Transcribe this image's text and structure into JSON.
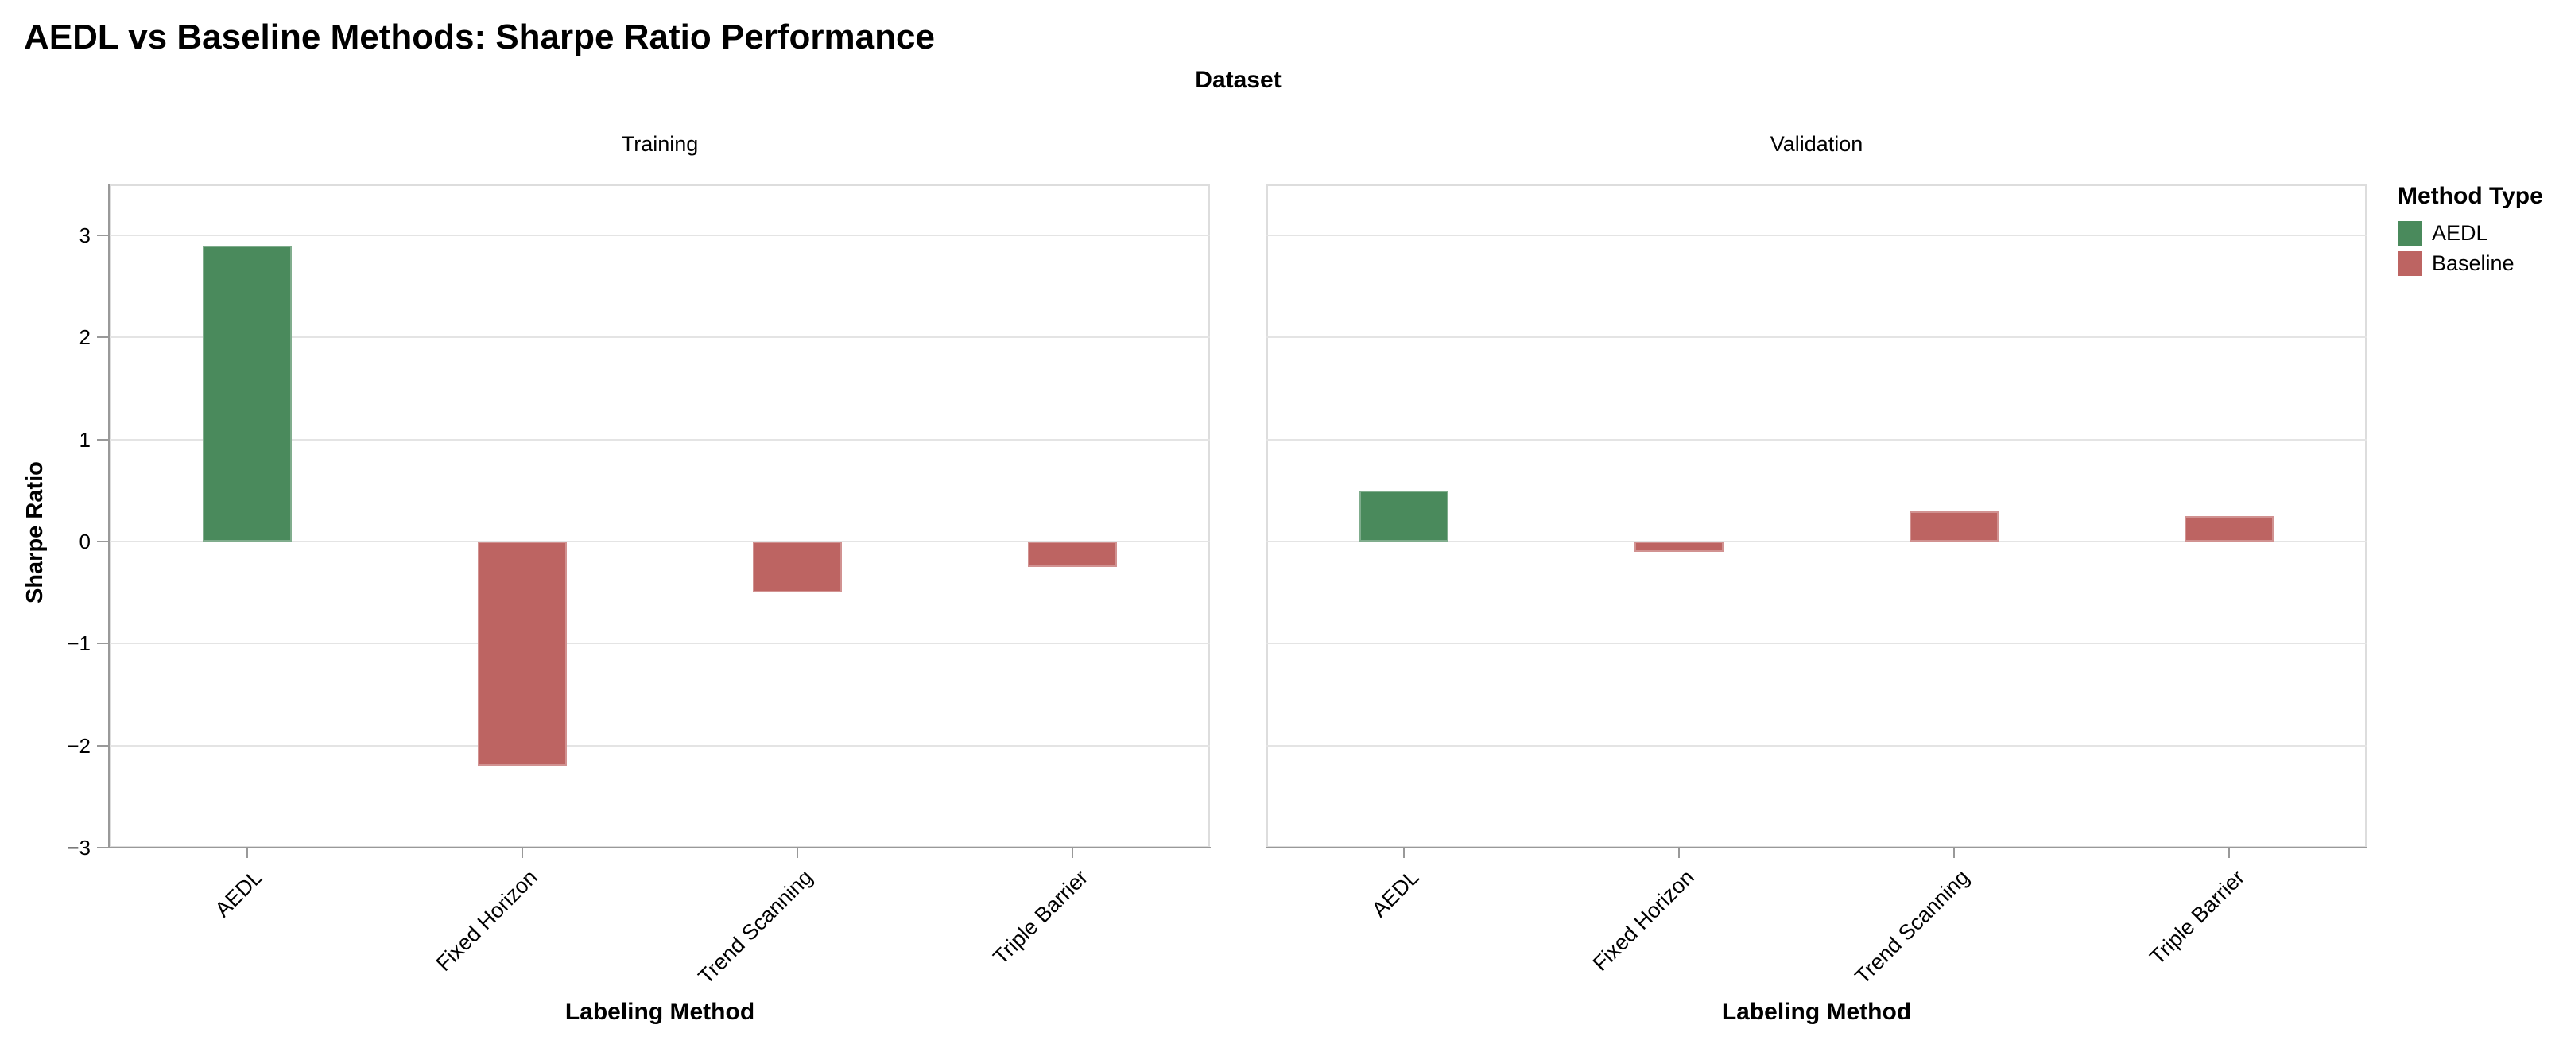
{
  "title": "AEDL vs Baseline Methods: Sharpe Ratio Performance",
  "chart_data": {
    "type": "bar",
    "title": "AEDL vs Baseline Methods: Sharpe Ratio Performance",
    "facet_header": "Dataset",
    "xlabel": "Labeling Method",
    "ylabel": "Sharpe Ratio",
    "ylim": [
      -3,
      3.5
    ],
    "yticks": [
      -3,
      -2,
      -1,
      0,
      1,
      2,
      3
    ],
    "grid": true,
    "categories": [
      "AEDL",
      "Fixed Horizon",
      "Trend Scanning",
      "Triple Barrier"
    ],
    "category_methods": [
      "AEDL",
      "Baseline",
      "Baseline",
      "Baseline"
    ],
    "facets": [
      {
        "label": "Training",
        "values": [
          2.9,
          -2.2,
          -0.5,
          -0.25
        ]
      },
      {
        "label": "Validation",
        "values": [
          0.5,
          -0.1,
          0.3,
          0.25
        ]
      }
    ],
    "legend": {
      "title": "Method Type",
      "position": "top-right",
      "entries": [
        {
          "label": "AEDL",
          "color": "#4a8a5c"
        },
        {
          "label": "Baseline",
          "color": "#bd6462"
        }
      ]
    },
    "colors": {
      "AEDL": "#4a8a5c",
      "Baseline": "#bd6462"
    },
    "axis_color": "#999999",
    "grid_color": "#e4e4e4",
    "frame_color": "#dddddd"
  }
}
